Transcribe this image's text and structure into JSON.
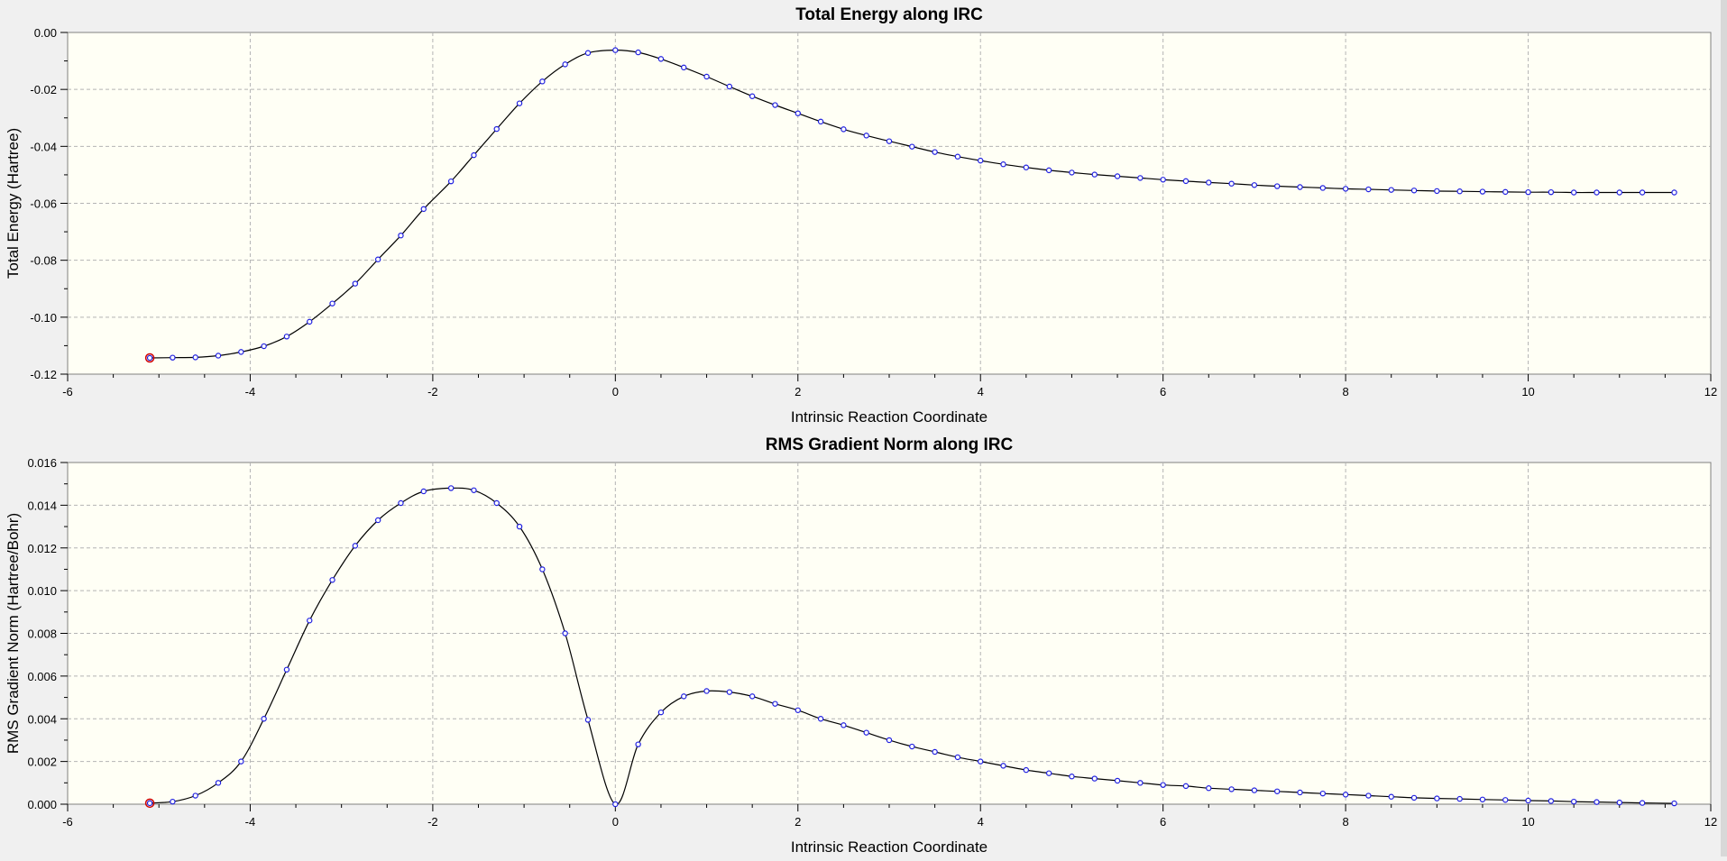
{
  "chart_data": [
    {
      "type": "line",
      "title": "Total Energy along IRC",
      "xlabel": "Intrinsic Reaction Coordinate",
      "ylabel": "Total Energy (Hartree)",
      "xlim": [
        -6,
        12
      ],
      "ylim": [
        -0.12,
        0.0
      ],
      "xticks": [
        -6,
        -4,
        -2,
        0,
        2,
        4,
        6,
        8,
        10,
        12
      ],
      "xtick_labels": [
        "-6",
        "-4",
        "-2",
        "0",
        "2",
        "4",
        "6",
        "8",
        "10",
        "12"
      ],
      "yticks": [
        -0.12,
        -0.1,
        -0.08,
        -0.06,
        -0.04,
        -0.02,
        0.0
      ],
      "ytick_labels": [
        "-0.12",
        "-0.10",
        "-0.08",
        "-0.06",
        "-0.04",
        "-0.02",
        "0.00"
      ],
      "grid": true,
      "highlighted_point_index": 0,
      "x": [
        -5.1,
        -4.85,
        -4.6,
        -4.35,
        -4.1,
        -3.85,
        -3.6,
        -3.35,
        -3.1,
        -2.85,
        -2.6,
        -2.35,
        -2.1,
        -1.8,
        -1.55,
        -1.3,
        -1.05,
        -0.8,
        -0.55,
        -0.3,
        0.0,
        0.25,
        0.5,
        0.75,
        1.0,
        1.25,
        1.5,
        1.75,
        2.0,
        2.25,
        2.5,
        2.75,
        3.0,
        3.25,
        3.5,
        3.75,
        4.0,
        4.25,
        4.5,
        4.75,
        5.0,
        5.25,
        5.5,
        5.75,
        6.0,
        6.25,
        6.5,
        6.75,
        7.0,
        7.25,
        7.5,
        7.75,
        8.0,
        8.25,
        8.5,
        8.75,
        9.0,
        9.25,
        9.5,
        9.75,
        10.0,
        10.25,
        10.5,
        10.75,
        11.0,
        11.25,
        11.6
      ],
      "y": [
        -0.1143,
        -0.1142,
        -0.1141,
        -0.1135,
        -0.1122,
        -0.1102,
        -0.1068,
        -0.1016,
        -0.0952,
        -0.0882,
        -0.0797,
        -0.0713,
        -0.062,
        -0.0523,
        -0.0431,
        -0.0339,
        -0.0249,
        -0.0172,
        -0.0112,
        -0.0072,
        -0.0062,
        -0.007,
        -0.0093,
        -0.0123,
        -0.0155,
        -0.019,
        -0.0224,
        -0.0255,
        -0.0284,
        -0.0313,
        -0.034,
        -0.0362,
        -0.0382,
        -0.0401,
        -0.042,
        -0.0436,
        -0.045,
        -0.0463,
        -0.0474,
        -0.0484,
        -0.0492,
        -0.0499,
        -0.0505,
        -0.0511,
        -0.0517,
        -0.0522,
        -0.0527,
        -0.0531,
        -0.0536,
        -0.054,
        -0.0543,
        -0.0546,
        -0.0549,
        -0.0551,
        -0.0553,
        -0.0555,
        -0.0557,
        -0.0558,
        -0.0559,
        -0.056,
        -0.0561,
        -0.0561,
        -0.0562,
        -0.0562,
        -0.0562,
        -0.0562,
        -0.0562
      ]
    },
    {
      "type": "line",
      "title": "RMS Gradient Norm along IRC",
      "xlabel": "Intrinsic Reaction Coordinate",
      "ylabel": "RMS Gradient Norm (Hartree/Bohr)",
      "xlim": [
        -6,
        12
      ],
      "ylim": [
        0.0,
        0.016
      ],
      "xticks": [
        -6,
        -4,
        -2,
        0,
        2,
        4,
        6,
        8,
        10,
        12
      ],
      "xtick_labels": [
        "-6",
        "-4",
        "-2",
        "0",
        "2",
        "4",
        "6",
        "8",
        "10",
        "12"
      ],
      "yticks": [
        0.0,
        0.002,
        0.004,
        0.006,
        0.008,
        0.01,
        0.012,
        0.014,
        0.016
      ],
      "ytick_labels": [
        "0.000",
        "0.002",
        "0.004",
        "0.006",
        "0.008",
        "0.010",
        "0.012",
        "0.014",
        "0.016"
      ],
      "grid": true,
      "highlighted_point_index": 0,
      "x": [
        -5.1,
        -4.85,
        -4.6,
        -4.35,
        -4.1,
        -3.85,
        -3.6,
        -3.35,
        -3.1,
        -2.85,
        -2.6,
        -2.35,
        -2.1,
        -1.8,
        -1.55,
        -1.3,
        -1.05,
        -0.8,
        -0.55,
        -0.3,
        0.0,
        0.25,
        0.5,
        0.75,
        1.0,
        1.25,
        1.5,
        1.75,
        2.0,
        2.25,
        2.5,
        2.75,
        3.0,
        3.25,
        3.5,
        3.75,
        4.0,
        4.25,
        4.5,
        4.75,
        5.0,
        5.25,
        5.5,
        5.75,
        6.0,
        6.25,
        6.5,
        6.75,
        7.0,
        7.25,
        7.5,
        7.75,
        8.0,
        8.25,
        8.5,
        8.75,
        9.0,
        9.25,
        9.5,
        9.75,
        10.0,
        10.25,
        10.5,
        10.75,
        11.0,
        11.25,
        11.6
      ],
      "y": [
        5e-05,
        0.00012,
        0.0004,
        0.001,
        0.002,
        0.004,
        0.0063,
        0.0086,
        0.0105,
        0.0121,
        0.0133,
        0.0141,
        0.01465,
        0.0148,
        0.0147,
        0.0141,
        0.013,
        0.011,
        0.008,
        0.00395,
        0.0,
        0.0028,
        0.0043,
        0.00505,
        0.0053,
        0.00525,
        0.00505,
        0.0047,
        0.0044,
        0.004,
        0.0037,
        0.00335,
        0.003,
        0.0027,
        0.00245,
        0.0022,
        0.002,
        0.0018,
        0.0016,
        0.00145,
        0.0013,
        0.0012,
        0.0011,
        0.001,
        0.0009,
        0.00085,
        0.00075,
        0.0007,
        0.00065,
        0.0006,
        0.00055,
        0.0005,
        0.00045,
        0.0004,
        0.00035,
        0.0003,
        0.00027,
        0.00025,
        0.00022,
        0.0002,
        0.00017,
        0.00015,
        0.00012,
        0.0001,
        8e-05,
        6e-05,
        4e-05
      ]
    }
  ]
}
